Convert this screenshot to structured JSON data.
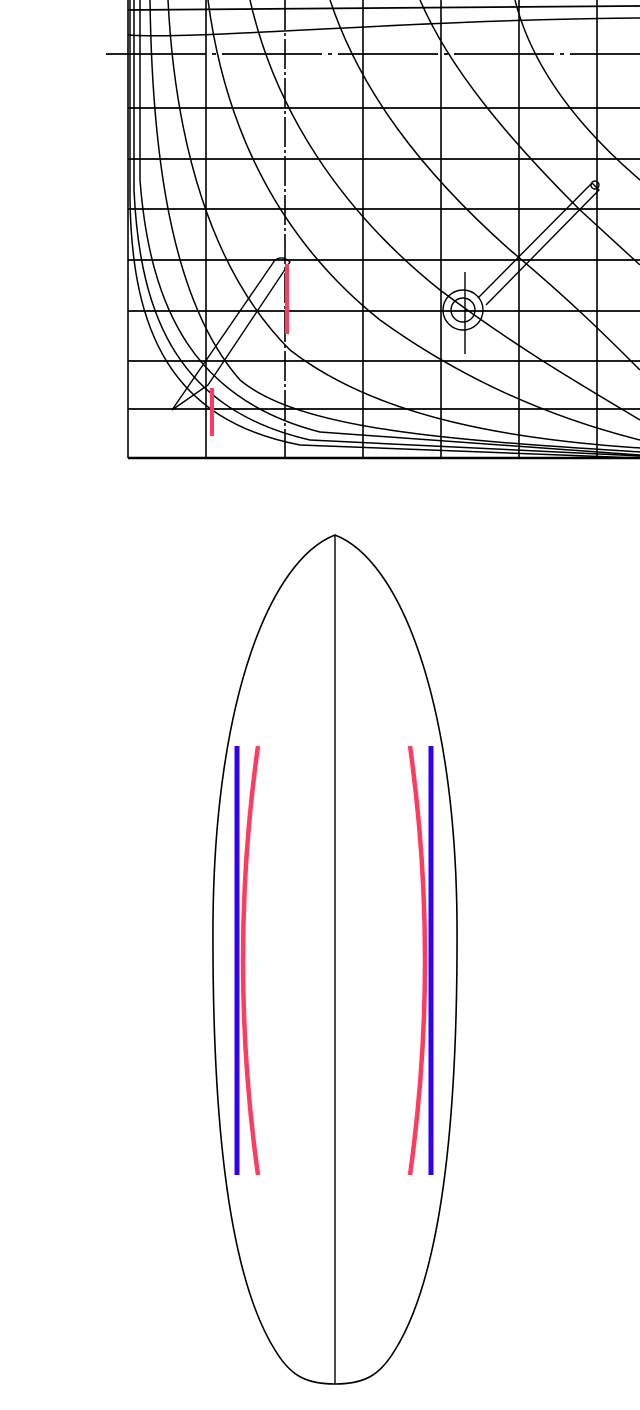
{
  "colors": {
    "line": "#000000",
    "accent_red": "#ff3b5f",
    "accent_blue": "#3300ee",
    "background": "#ffffff"
  },
  "panels": [
    {
      "kind": "hull-body-plan-section-drawing"
    },
    {
      "kind": "board-outline-plan-view"
    }
  ]
}
